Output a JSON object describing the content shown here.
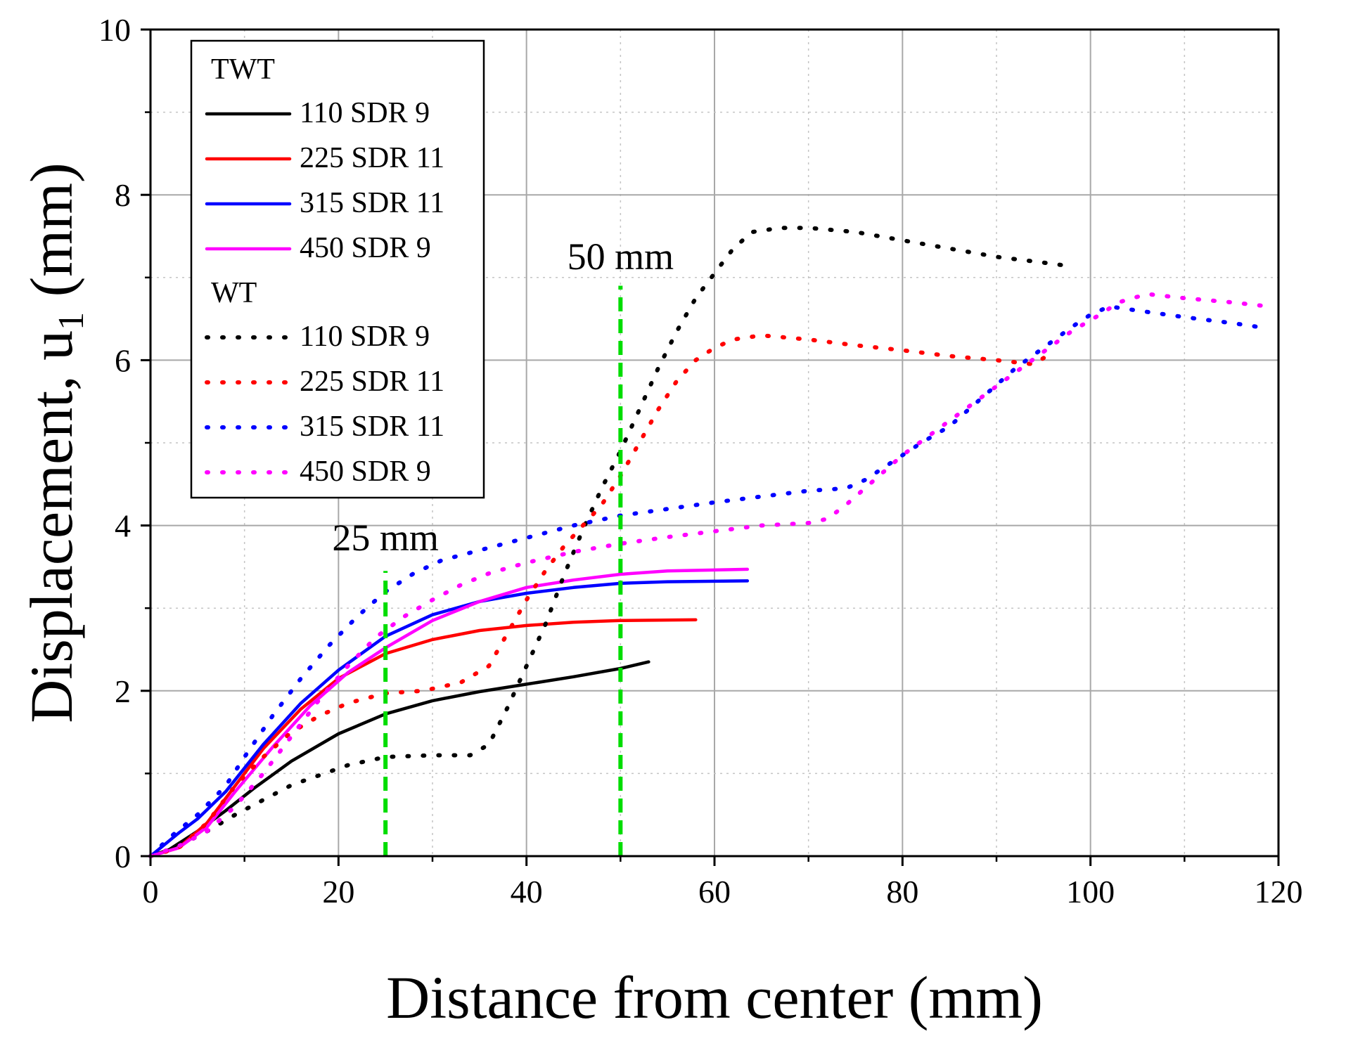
{
  "chart_data": {
    "type": "line",
    "title": "",
    "xlabel": "Distance from center (mm)",
    "ylabel": {
      "main": "Displacement, u",
      "subscript": "1",
      "unit": " (mm)"
    },
    "xlim": [
      0,
      120
    ],
    "ylim": [
      0,
      10
    ],
    "xticks": [
      0,
      20,
      40,
      60,
      80,
      100,
      120
    ],
    "yticks": [
      0,
      2,
      4,
      6,
      8,
      10
    ],
    "grid": true,
    "legend_position": "top-left",
    "legend_groups": [
      {
        "title": "TWT",
        "series_indices": [
          0,
          1,
          2,
          3
        ]
      },
      {
        "title": "WT",
        "series_indices": [
          4,
          5,
          6,
          7
        ]
      }
    ],
    "series": [
      {
        "group": "TWT",
        "name": "110 SDR 9",
        "color": "#000000",
        "style": "solid",
        "x": [
          0,
          2,
          5,
          8,
          11,
          15,
          20,
          25,
          30,
          35,
          40,
          45,
          50,
          53
        ],
        "y": [
          0,
          0.08,
          0.3,
          0.55,
          0.82,
          1.15,
          1.48,
          1.72,
          1.88,
          1.99,
          2.08,
          2.17,
          2.27,
          2.35
        ]
      },
      {
        "group": "TWT",
        "name": "225 SDR 11",
        "color": "#ff0000",
        "style": "solid",
        "x": [
          0,
          3,
          6,
          9,
          12,
          16,
          20,
          25,
          30,
          35,
          40,
          45,
          50,
          58
        ],
        "y": [
          0,
          0.1,
          0.4,
          0.85,
          1.3,
          1.78,
          2.15,
          2.45,
          2.62,
          2.73,
          2.79,
          2.83,
          2.85,
          2.86
        ]
      },
      {
        "group": "TWT",
        "name": "315 SDR 11",
        "color": "#0000ff",
        "style": "solid",
        "x": [
          0,
          3,
          5,
          8,
          12,
          16,
          20,
          25,
          30,
          35,
          40,
          45,
          50,
          55,
          63.5
        ],
        "y": [
          0,
          0.28,
          0.45,
          0.78,
          1.35,
          1.85,
          2.25,
          2.66,
          2.92,
          3.08,
          3.18,
          3.25,
          3.3,
          3.32,
          3.33
        ]
      },
      {
        "group": "TWT",
        "name": "450 SDR 9",
        "color": "#ff00ff",
        "style": "solid",
        "x": [
          0,
          3,
          6,
          9,
          13,
          17,
          21,
          25,
          30,
          35,
          40,
          45,
          50,
          55,
          63.5
        ],
        "y": [
          0,
          0.1,
          0.35,
          0.78,
          1.32,
          1.82,
          2.22,
          2.52,
          2.85,
          3.08,
          3.25,
          3.34,
          3.41,
          3.45,
          3.47
        ]
      },
      {
        "group": "WT",
        "name": "110 SDR 9",
        "color": "#000000",
        "style": "dotted",
        "x": [
          0,
          3,
          6,
          9,
          12,
          15,
          18,
          21,
          25,
          30,
          34,
          36,
          38,
          40,
          42,
          44,
          46,
          48,
          50,
          52,
          54,
          56,
          58,
          60,
          62,
          64,
          67,
          70,
          75,
          80,
          85,
          90,
          95,
          97
        ],
        "y": [
          0,
          0.12,
          0.3,
          0.5,
          0.68,
          0.86,
          0.98,
          1.1,
          1.2,
          1.22,
          1.22,
          1.35,
          1.8,
          2.3,
          2.8,
          3.4,
          3.95,
          4.45,
          4.9,
          5.4,
          5.9,
          6.35,
          6.75,
          7.05,
          7.35,
          7.55,
          7.6,
          7.6,
          7.55,
          7.45,
          7.35,
          7.25,
          7.18,
          7.15
        ]
      },
      {
        "group": "WT",
        "name": "225 SDR 11",
        "color": "#ff0000",
        "style": "dotted",
        "x": [
          0,
          3,
          6,
          9,
          12,
          15,
          18,
          21,
          25,
          29,
          33,
          36,
          38,
          40,
          42,
          44,
          46,
          48,
          50,
          52,
          54,
          56,
          58,
          60,
          62,
          65,
          70,
          75,
          80,
          85,
          90,
          94,
          96
        ],
        "y": [
          0,
          0.1,
          0.4,
          0.85,
          1.2,
          1.5,
          1.7,
          1.85,
          1.97,
          2.0,
          2.1,
          2.3,
          2.7,
          3.1,
          3.45,
          3.75,
          4.0,
          4.25,
          4.6,
          5.0,
          5.4,
          5.75,
          6.0,
          6.15,
          6.25,
          6.3,
          6.25,
          6.18,
          6.12,
          6.05,
          6.0,
          5.95,
          6.1
        ]
      },
      {
        "group": "WT",
        "name": "315 SDR 11",
        "color": "#0000ff",
        "style": "dotted",
        "x": [
          0,
          2,
          5,
          8,
          10,
          13,
          16,
          19,
          22,
          25,
          28,
          31,
          35,
          40,
          45,
          50,
          55,
          60,
          65,
          70,
          74,
          76,
          78,
          80,
          82,
          85,
          88,
          90,
          92,
          95,
          98,
          100,
          102,
          105,
          110,
          115,
          118
        ],
        "y": [
          0,
          0.22,
          0.5,
          0.85,
          1.2,
          1.7,
          2.15,
          2.55,
          2.9,
          3.2,
          3.42,
          3.58,
          3.7,
          3.85,
          4.0,
          4.12,
          4.2,
          4.28,
          4.35,
          4.42,
          4.45,
          4.55,
          4.7,
          4.85,
          5.0,
          5.2,
          5.5,
          5.7,
          5.9,
          6.15,
          6.4,
          6.55,
          6.65,
          6.6,
          6.52,
          6.45,
          6.4
        ]
      },
      {
        "group": "WT",
        "name": "450 SDR 9",
        "color": "#ff00ff",
        "style": "dotted",
        "x": [
          0,
          3,
          6,
          9,
          12,
          15,
          18,
          21,
          24,
          27,
          30,
          33,
          36,
          40,
          45,
          50,
          55,
          60,
          65,
          70,
          72,
          74,
          76,
          78,
          80,
          83,
          86,
          89,
          92,
          95,
          98,
          101,
          103,
          106,
          110,
          115,
          119
        ],
        "y": [
          0,
          0.12,
          0.3,
          0.6,
          1.0,
          1.45,
          1.9,
          2.3,
          2.65,
          2.9,
          3.1,
          3.28,
          3.42,
          3.55,
          3.68,
          3.78,
          3.86,
          3.93,
          4.0,
          4.03,
          4.08,
          4.25,
          4.45,
          4.65,
          4.85,
          5.1,
          5.35,
          5.6,
          5.85,
          6.1,
          6.35,
          6.55,
          6.7,
          6.8,
          6.75,
          6.7,
          6.65
        ]
      }
    ],
    "annotations": [
      {
        "label": "25 mm",
        "x": 25,
        "line_y_max": 3.45,
        "text_y": 3.7,
        "color": "#00dd00",
        "style": "dashed"
      },
      {
        "label": "50 mm",
        "x": 50,
        "line_y_max": 6.9,
        "text_y": 7.1,
        "color": "#00dd00",
        "style": "dashed"
      }
    ]
  }
}
